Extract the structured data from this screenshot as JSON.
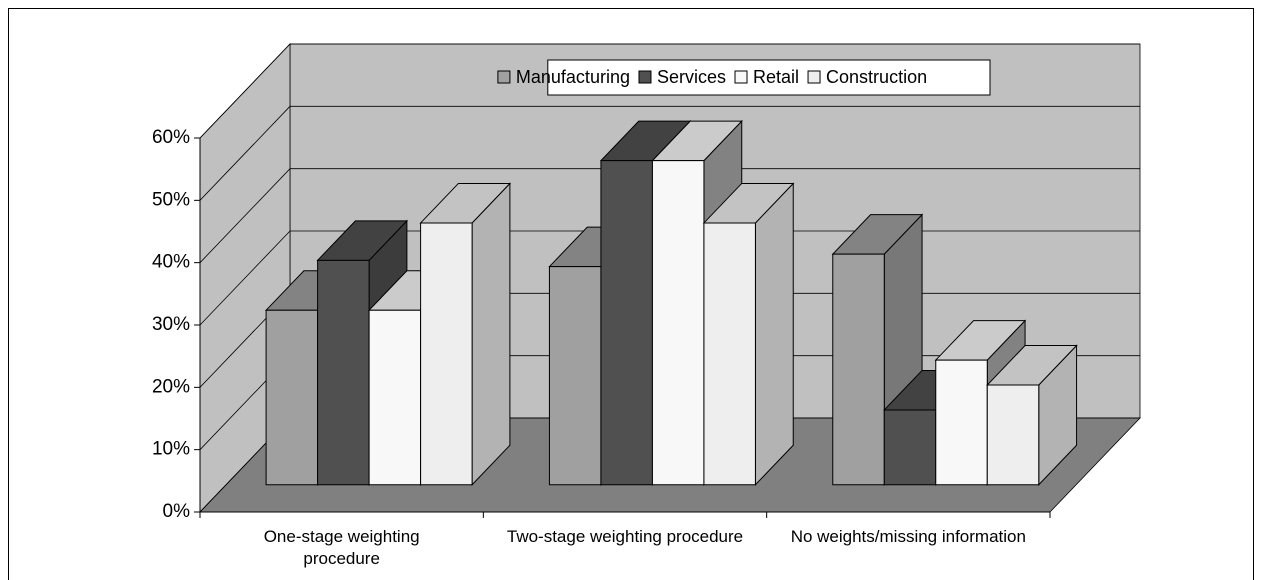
{
  "chart_data": {
    "type": "bar3d",
    "categories": [
      "One-stage weighting procedure",
      "Two-stage weighting procedure",
      "No weights/missing information"
    ],
    "series": [
      {
        "name": "Manufacturing",
        "color": "#a0a0a0",
        "values": [
          28,
          35,
          37
        ]
      },
      {
        "name": "Services",
        "color": "#505050",
        "values": [
          36,
          52,
          12
        ]
      },
      {
        "name": "Retail",
        "color": "#f8f8f8",
        "values": [
          28,
          52,
          20
        ]
      },
      {
        "name": "Construction",
        "color": "#eeeeee",
        "values": [
          42,
          42,
          16
        ]
      }
    ],
    "ylim": [
      0,
      60
    ],
    "yticks": [
      {
        "value": 0,
        "label": "0%"
      },
      {
        "value": 10,
        "label": "10%"
      },
      {
        "value": 20,
        "label": "20%"
      },
      {
        "value": 30,
        "label": "30%"
      },
      {
        "value": 40,
        "label": "40%"
      },
      {
        "value": 50,
        "label": "50%"
      },
      {
        "value": 60,
        "label": "60%"
      }
    ],
    "grid": true,
    "legend": "top"
  }
}
